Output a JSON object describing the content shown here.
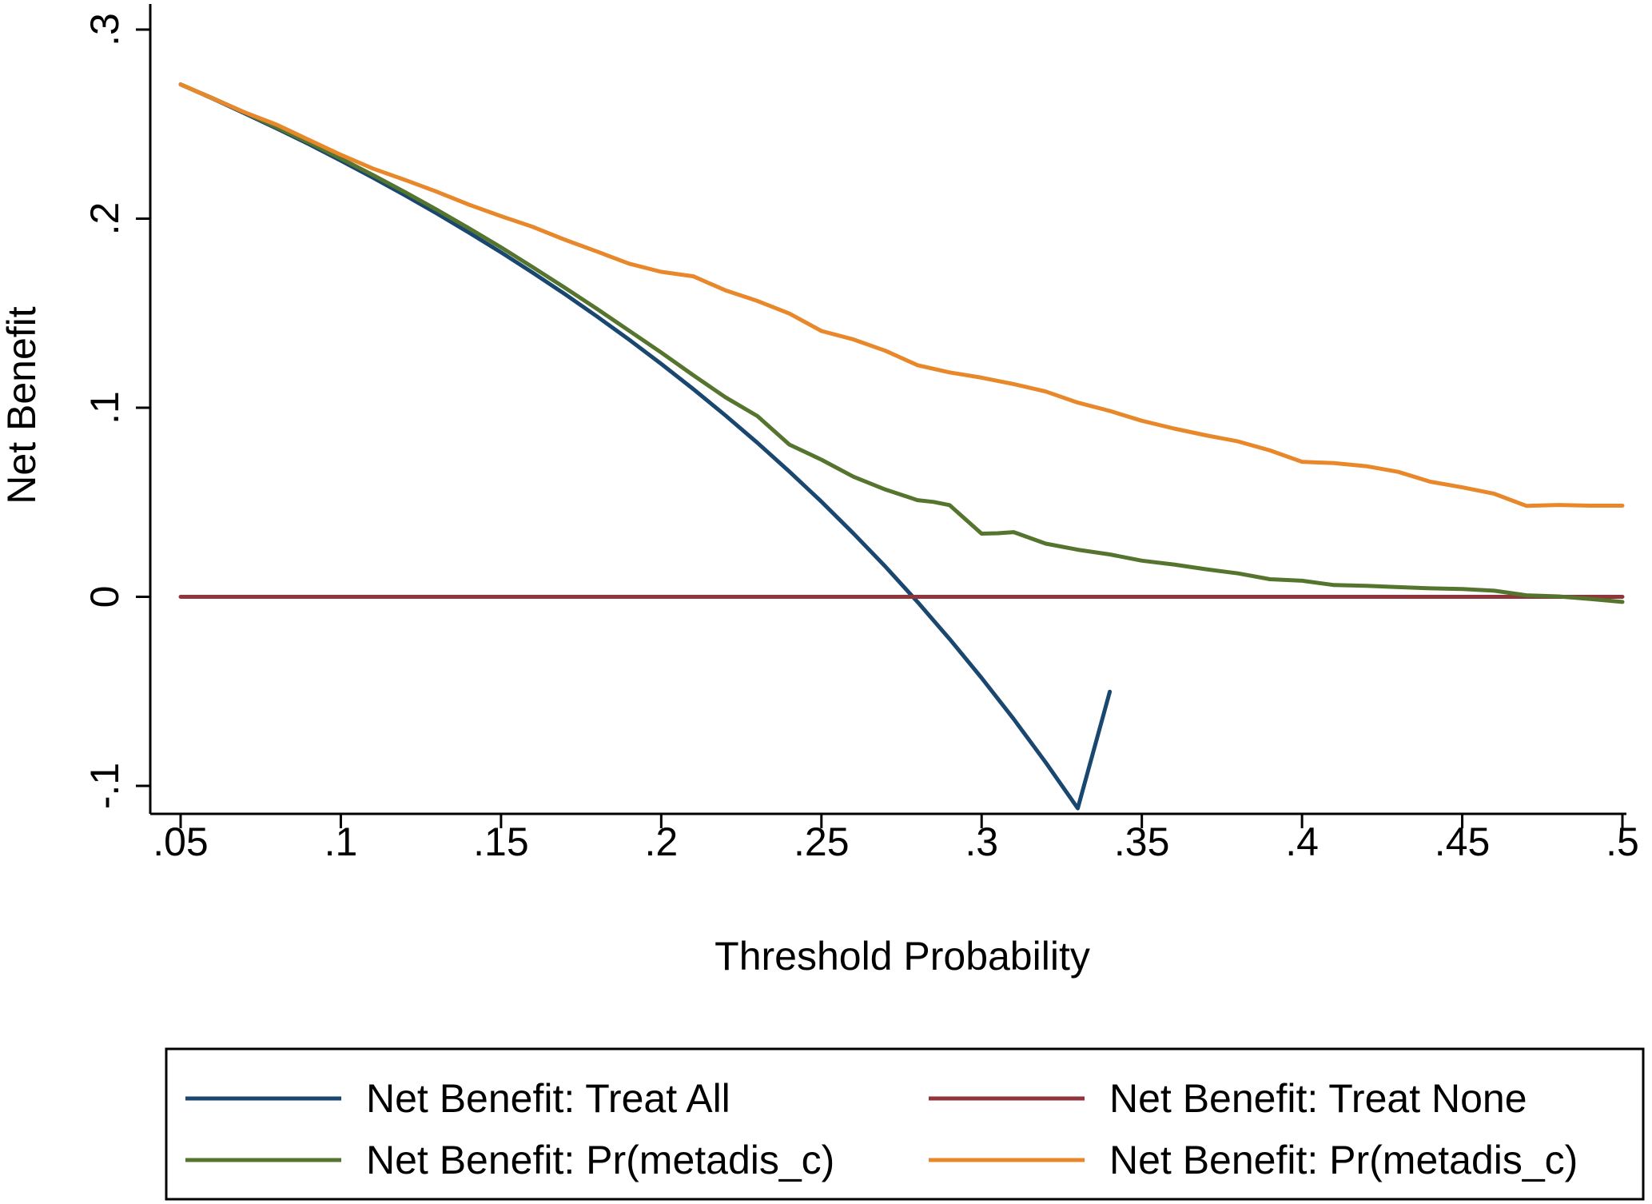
{
  "chart_data": {
    "type": "line",
    "title": "",
    "xlabel": "Threshold Probability",
    "ylabel": "Net Benefit",
    "xlim": [
      0.05,
      0.5
    ],
    "ylim": [
      -0.1,
      0.3
    ],
    "grid": false,
    "legend_position": "bottom",
    "x_ticks": [
      {
        "value": 0.05,
        "label": ".05"
      },
      {
        "value": 0.1,
        "label": ".1"
      },
      {
        "value": 0.15,
        "label": ".15"
      },
      {
        "value": 0.2,
        "label": ".2"
      },
      {
        "value": 0.25,
        "label": ".25"
      },
      {
        "value": 0.3,
        "label": ".3"
      },
      {
        "value": 0.35,
        "label": ".35"
      },
      {
        "value": 0.4,
        "label": ".4"
      },
      {
        "value": 0.45,
        "label": ".45"
      },
      {
        "value": 0.5,
        "label": ".5"
      }
    ],
    "y_ticks": [
      {
        "value": -0.1,
        "label": "-.1"
      },
      {
        "value": 0,
        "label": "0"
      },
      {
        "value": 0.1,
        "label": ".1"
      },
      {
        "value": 0.2,
        "label": ".2"
      },
      {
        "value": 0.3,
        "label": ".3"
      }
    ],
    "series": [
      {
        "name": "Net Benefit: Treat All",
        "color": "#1a476f",
        "x": [
          0.05,
          0.06,
          0.07,
          0.08,
          0.09,
          0.1,
          0.11,
          0.12,
          0.13,
          0.14,
          0.15,
          0.16,
          0.17,
          0.18,
          0.19,
          0.2,
          0.21,
          0.22,
          0.23,
          0.24,
          0.25,
          0.26,
          0.27,
          0.28,
          0.29,
          0.3,
          0.31,
          0.32,
          0.33,
          0.34
        ],
        "y": [
          0.271,
          0.2635,
          0.2557,
          0.2477,
          0.2394,
          0.2307,
          0.2217,
          0.2124,
          0.2027,
          0.1926,
          0.1822,
          0.1713,
          0.16,
          0.1482,
          0.136,
          0.1232,
          0.1099,
          0.096,
          0.0815,
          0.0662,
          0.0503,
          0.0335,
          0.0159,
          -0.0027,
          -0.0223,
          -0.0429,
          -0.0646,
          -0.0876,
          -0.1119,
          -0.0502
        ]
      },
      {
        "name": "Net Benefit: Treat None",
        "color": "#90353b",
        "x": [
          0.05,
          0.5
        ],
        "y": [
          0,
          0
        ]
      },
      {
        "name": "Net Benefit: Pr(metadis_c)",
        "color": "#55752f",
        "x": [
          0.05,
          0.06,
          0.07,
          0.08,
          0.09,
          0.1,
          0.11,
          0.12,
          0.13,
          0.14,
          0.15,
          0.16,
          0.17,
          0.18,
          0.19,
          0.2,
          0.21,
          0.22,
          0.23,
          0.24,
          0.25,
          0.26,
          0.27,
          0.28,
          0.285,
          0.29,
          0.3,
          0.305,
          0.31,
          0.32,
          0.33,
          0.34,
          0.35,
          0.36,
          0.37,
          0.38,
          0.39,
          0.4,
          0.41,
          0.42,
          0.43,
          0.44,
          0.45,
          0.46,
          0.47,
          0.48,
          0.49,
          0.5
        ],
        "y": [
          0.271,
          0.2637,
          0.2561,
          0.2483,
          0.2402,
          0.2318,
          0.2231,
          0.2141,
          0.2047,
          0.1949,
          0.1848,
          0.1742,
          0.1634,
          0.1522,
          0.1407,
          0.1292,
          0.1172,
          0.1056,
          0.0956,
          0.0805,
          0.0725,
          0.0635,
          0.0567,
          0.0511,
          0.0502,
          0.0485,
          0.0334,
          0.0336,
          0.0342,
          0.0281,
          0.0249,
          0.0224,
          0.0191,
          0.0171,
          0.0146,
          0.0124,
          0.0093,
          0.0085,
          0.0062,
          0.0058,
          0.0051,
          0.0045,
          0.0041,
          0.0032,
          0.0008,
          0.0002,
          -0.0012,
          -0.0027
        ]
      },
      {
        "name": "Net Benefit: Pr(metadis_c)",
        "color": "#e8882b",
        "x": [
          0.05,
          0.06,
          0.07,
          0.08,
          0.09,
          0.1,
          0.11,
          0.12,
          0.13,
          0.14,
          0.15,
          0.16,
          0.17,
          0.18,
          0.19,
          0.2,
          0.21,
          0.22,
          0.23,
          0.24,
          0.25,
          0.26,
          0.27,
          0.28,
          0.29,
          0.3,
          0.31,
          0.32,
          0.33,
          0.34,
          0.35,
          0.36,
          0.37,
          0.38,
          0.39,
          0.4,
          0.41,
          0.42,
          0.43,
          0.44,
          0.45,
          0.46,
          0.47,
          0.48,
          0.49,
          0.5
        ],
        "y": [
          0.271,
          0.2636,
          0.2562,
          0.2497,
          0.2417,
          0.2338,
          0.2265,
          0.2205,
          0.2142,
          0.2074,
          0.2013,
          0.1956,
          0.1888,
          0.1826,
          0.1762,
          0.1719,
          0.1695,
          0.1621,
          0.1565,
          0.1498,
          0.1406,
          0.1361,
          0.1301,
          0.1225,
          0.1187,
          0.1159,
          0.1125,
          0.1086,
          0.1027,
          0.0983,
          0.0931,
          0.089,
          0.0854,
          0.0822,
          0.0774,
          0.0714,
          0.0707,
          0.0691,
          0.0661,
          0.0609,
          0.0579,
          0.0545,
          0.0481,
          0.0486,
          0.0482,
          0.0482
        ]
      }
    ]
  }
}
